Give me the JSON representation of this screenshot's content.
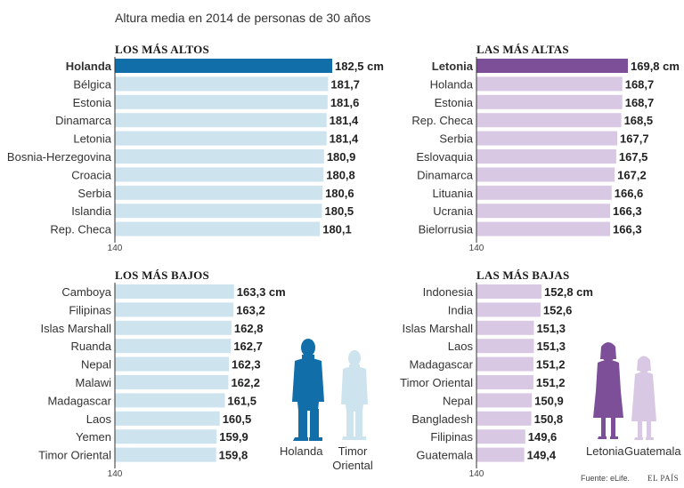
{
  "title": "Altura media en 2014 de personas de 30 años",
  "colors": {
    "tall_men_highlight": "#116ea8",
    "tall_men_bar": "#cde3ee",
    "tall_women_highlight": "#7c4f98",
    "tall_women_bar": "#d8c8e3",
    "men_figure": "#116ea8",
    "men_figure_light": "#cde3ee",
    "women_figure": "#7c4f98",
    "women_figure_light": "#d8c8e3"
  },
  "footer": {
    "source": "Fuente: eLife.",
    "brand": "EL PAÍS"
  },
  "figures": {
    "men": {
      "left_label": "Holanda",
      "right_label_1": "Timor",
      "right_label_2": "Oriental"
    },
    "women": {
      "left_label": "Letonia",
      "right_label": "Guatemala"
    }
  },
  "chart_data": [
    {
      "id": "altos",
      "type": "bar",
      "orientation": "horizontal",
      "title": "LOS MÁS ALTOS",
      "axis_min_label": "140",
      "xlim": [
        140,
        182.5
      ],
      "categories": [
        "Holanda",
        "Bélgica",
        "Estonia",
        "Dinamarca",
        "Letonia",
        "Bosnia-Herzegovina",
        "Croacia",
        "Serbia",
        "Islandia",
        "Rep. Checa"
      ],
      "values": [
        182.5,
        181.7,
        181.6,
        181.4,
        181.4,
        180.9,
        180.8,
        180.6,
        180.5,
        180.1
      ],
      "labels": [
        "182,5 cm",
        "181,7",
        "181,6",
        "181,4",
        "181,4",
        "180,9",
        "180,8",
        "180,6",
        "180,5",
        "180,1"
      ],
      "highlight_index": 0
    },
    {
      "id": "altas",
      "type": "bar",
      "orientation": "horizontal",
      "title": "LAS MÁS ALTAS",
      "axis_min_label": "140",
      "xlim": [
        140,
        169.8
      ],
      "categories": [
        "Letonia",
        "Holanda",
        "Estonia",
        "Rep. Checa",
        "Serbia",
        "Eslovaquia",
        "Dinamarca",
        "Lituania",
        "Ucrania",
        "Bielorrusia"
      ],
      "values": [
        169.8,
        168.7,
        168.7,
        168.5,
        167.7,
        167.5,
        167.2,
        166.6,
        166.3,
        166.3
      ],
      "labels": [
        "169,8 cm",
        "168,7",
        "168,7",
        "168,5",
        "167,7",
        "167,5",
        "167,2",
        "166,6",
        "166,3",
        "166,3"
      ],
      "highlight_index": 0
    },
    {
      "id": "bajos",
      "type": "bar",
      "orientation": "horizontal",
      "title": "LOS MÁS BAJOS",
      "axis_min_label": "140",
      "xlim": [
        140,
        182.5
      ],
      "categories": [
        "Camboya",
        "Filipinas",
        "Islas Marshall",
        "Ruanda",
        "Nepal",
        "Malawi",
        "Madagascar",
        "Laos",
        "Yemen",
        "Timor Oriental"
      ],
      "values": [
        163.3,
        163.2,
        162.8,
        162.7,
        162.3,
        162.2,
        161.5,
        160.5,
        159.9,
        159.8
      ],
      "labels": [
        "163,3 cm",
        "163,2",
        "162,8",
        "162,7",
        "162,3",
        "162,2",
        "161,5",
        "160,5",
        "159,9",
        "159,8"
      ],
      "highlight_index": -1
    },
    {
      "id": "bajas",
      "type": "bar",
      "orientation": "horizontal",
      "title": "LAS MÁS BAJAS",
      "axis_min_label": "140",
      "xlim": [
        140,
        169.8
      ],
      "categories": [
        "Indonesia",
        "India",
        "Islas Marshall",
        "Laos",
        "Madagascar",
        "Timor Oriental",
        "Nepal",
        "Bangladesh",
        "Filipinas",
        "Guatemala"
      ],
      "values": [
        152.8,
        152.6,
        151.3,
        151.3,
        151.2,
        151.2,
        150.9,
        150.8,
        149.6,
        149.4
      ],
      "labels": [
        "152,8 cm",
        "152,6",
        "151,3",
        "151,3",
        "151,2",
        "151,2",
        "150,9",
        "150,8",
        "149,6",
        "149,4"
      ],
      "highlight_index": -1
    }
  ]
}
